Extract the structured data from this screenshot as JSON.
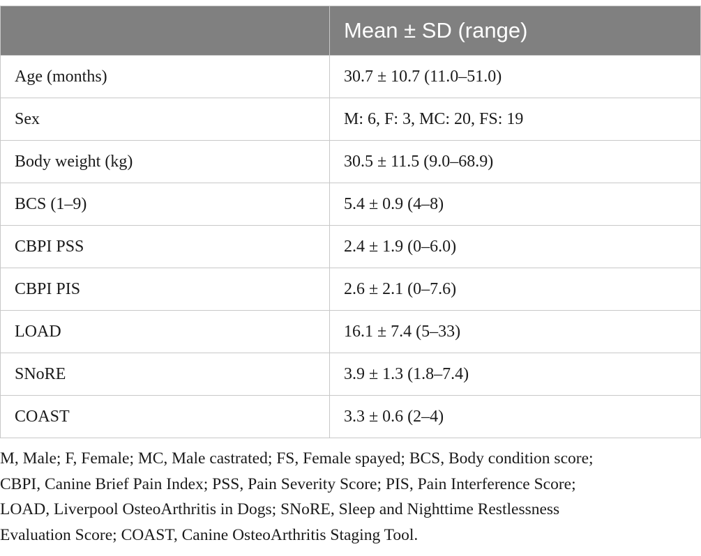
{
  "table": {
    "header": [
      "Mean ± SD (range)"
    ],
    "rows": [
      [
        "Age (months)",
        "30.7 ± 10.7 (11.0–51.0)"
      ],
      [
        "Sex",
        "M: 6, F: 3, MC: 20, FS: 19"
      ],
      [
        "Body weight (kg)",
        "30.5 ± 11.5 (9.0–68.9)"
      ],
      [
        "BCS (1–9)",
        "5.4 ± 0.9 (4–8)"
      ],
      [
        "CBPI PSS",
        "2.4 ± 1.9 (0–6.0)"
      ],
      [
        "CBPI PIS",
        "2.6 ± 2.1 (0–7.6)"
      ],
      [
        "LOAD",
        "16.1 ± 7.4 (5–33)"
      ],
      [
        "SNoRE",
        "3.9 ± 1.3 (1.8–7.4)"
      ],
      [
        "COAST",
        "3.3 ± 0.6 (2–4)"
      ]
    ]
  },
  "footnote": [
    "M, Male; F, Female; MC, Male castrated; FS, Female spayed; BCS, Body condition score;",
    "CBPI, Canine Brief Pain Index; PSS, Pain Severity Score; PIS, Pain Interference Score;",
    "LOAD, Liverpool OsteoArthritis in Dogs; SNoRE, Sleep and Nighttime Restlessness",
    "Evaluation Score; COAST, Canine OsteoArthritis Staging Tool."
  ]
}
